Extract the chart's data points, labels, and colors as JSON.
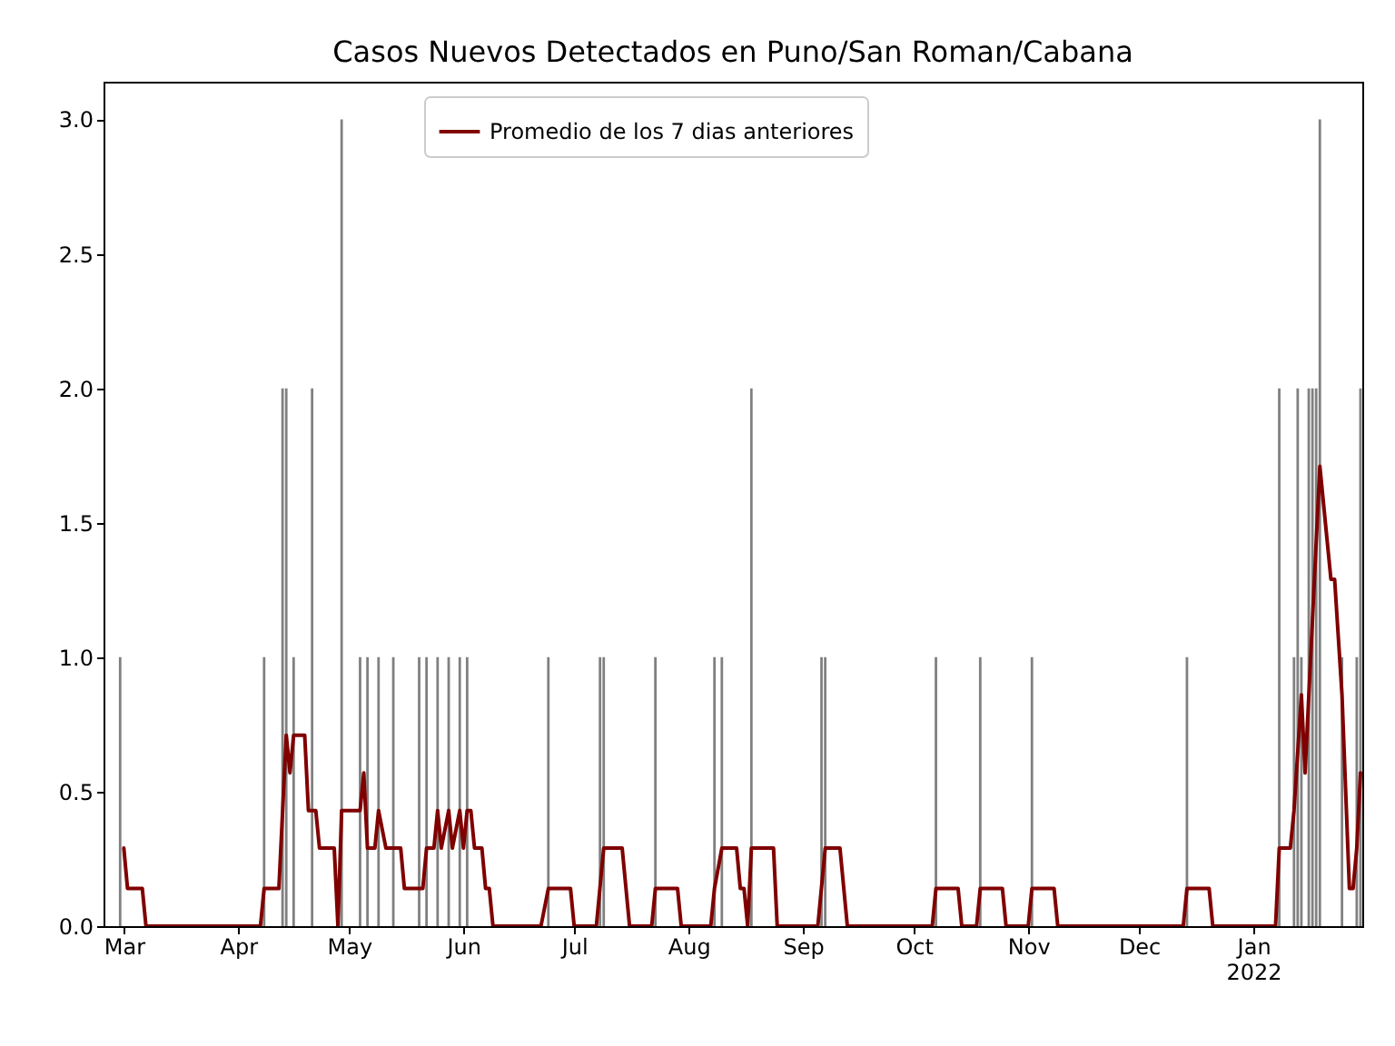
{
  "chart_data": {
    "type": "bar",
    "title": "Casos Nuevos Detectados en Puno/San Roman/Cabana",
    "xlim": [
      "2021-02-23T12:00",
      "2022-01-30T12:00"
    ],
    "xticks": [
      {
        "value": "2021-03-01",
        "label": "Mar"
      },
      {
        "value": "2021-04-01",
        "label": "Apr"
      },
      {
        "value": "2021-05-01",
        "label": "May"
      },
      {
        "value": "2021-06-01",
        "label": "Jun"
      },
      {
        "value": "2021-07-01",
        "label": "Jul"
      },
      {
        "value": "2021-08-01",
        "label": "Aug"
      },
      {
        "value": "2021-09-01",
        "label": "Sep"
      },
      {
        "value": "2021-10-01",
        "label": "Oct"
      },
      {
        "value": "2021-11-01",
        "label": "Nov"
      },
      {
        "value": "2021-12-01",
        "label": "Dec"
      },
      {
        "value": "2022-01-01",
        "label": "Jan\n2022"
      }
    ],
    "ylim": [
      0,
      3.14
    ],
    "yticks": [
      {
        "value": 0,
        "label": "0.0"
      },
      {
        "value": 0.5,
        "label": "0.5"
      },
      {
        "value": 1,
        "label": "1.0"
      },
      {
        "value": 1.5,
        "label": "1.5"
      },
      {
        "value": 2,
        "label": "2.0"
      },
      {
        "value": 2.5,
        "label": "2.5"
      },
      {
        "value": 3,
        "label": "3.0"
      }
    ],
    "grid": false,
    "legend": "top",
    "series": [
      {
        "color": "#808080",
        "x": [
          "2021-02-28",
          "2021-04-08",
          "2021-04-13",
          "2021-04-14",
          "2021-04-16",
          "2021-04-21",
          "2021-04-29",
          "2021-05-04",
          "2021-05-06",
          "2021-05-09",
          "2021-05-13",
          "2021-05-20",
          "2021-05-22",
          "2021-05-25",
          "2021-05-28",
          "2021-05-31",
          "2021-06-02",
          "2021-06-24",
          "2021-07-08",
          "2021-07-09",
          "2021-07-23",
          "2021-08-08",
          "2021-08-10",
          "2021-08-18",
          "2021-09-06",
          "2021-09-07",
          "2021-10-07",
          "2021-10-19",
          "2021-11-02",
          "2021-12-14",
          "2022-01-08",
          "2022-01-12",
          "2022-01-13",
          "2022-01-14",
          "2022-01-16",
          "2022-01-17",
          "2022-01-18",
          "2022-01-19",
          "2022-01-25",
          "2022-01-29",
          "2022-01-30"
        ],
        "values": [
          1,
          1,
          2,
          2,
          1,
          2,
          3,
          1,
          1,
          1,
          1,
          1,
          1,
          1,
          1,
          1,
          1,
          1,
          1,
          1,
          1,
          1,
          1,
          2,
          1,
          1,
          1,
          1,
          1,
          1,
          2,
          1,
          2,
          1,
          2,
          2,
          2,
          3,
          1,
          1,
          2
        ]
      },
      {
        "name": "Promedio de los 7 dias anteriores",
        "type": "line",
        "color": "#800000",
        "x": [
          "2021-03-01",
          "2021-03-02",
          "2021-03-06",
          "2021-03-07",
          "2021-04-07",
          "2021-04-08",
          "2021-04-12",
          "2021-04-14",
          "2021-04-15",
          "2021-04-16",
          "2021-04-19",
          "2021-04-20",
          "2021-04-22",
          "2021-04-23",
          "2021-04-27",
          "2021-04-28",
          "2021-04-29",
          "2021-05-04",
          "2021-05-05",
          "2021-05-06",
          "2021-05-08",
          "2021-05-09",
          "2021-05-11",
          "2021-05-15",
          "2021-05-16",
          "2021-05-21",
          "2021-05-22",
          "2021-05-24",
          "2021-05-25",
          "2021-05-26",
          "2021-05-28",
          "2021-05-29",
          "2021-05-31",
          "2021-06-01",
          "2021-06-02",
          "2021-06-03",
          "2021-06-04",
          "2021-06-06",
          "2021-06-07",
          "2021-06-08",
          "2021-06-09",
          "2021-06-22",
          "2021-06-24",
          "2021-06-30",
          "2021-07-01",
          "2021-07-07",
          "2021-07-09",
          "2021-07-14",
          "2021-07-16",
          "2021-07-22",
          "2021-07-23",
          "2021-07-29",
          "2021-07-30",
          "2021-08-07",
          "2021-08-08",
          "2021-08-10",
          "2021-08-14",
          "2021-08-15",
          "2021-08-16",
          "2021-08-17",
          "2021-08-18",
          "2021-08-24",
          "2021-08-25",
          "2021-09-05",
          "2021-09-07",
          "2021-09-11",
          "2021-09-13",
          "2021-10-06",
          "2021-10-07",
          "2021-10-13",
          "2021-10-14",
          "2021-10-18",
          "2021-10-19",
          "2021-10-25",
          "2021-10-26",
          "2021-11-01",
          "2021-11-02",
          "2021-11-08",
          "2021-11-09",
          "2021-12-13",
          "2021-12-14",
          "2021-12-20",
          "2021-12-21",
          "2022-01-07",
          "2022-01-08",
          "2022-01-11",
          "2022-01-12",
          "2022-01-14",
          "2022-01-15",
          "2022-01-19",
          "2022-01-21",
          "2022-01-22",
          "2022-01-23",
          "2022-01-25",
          "2022-01-27",
          "2022-01-28",
          "2022-01-29",
          "2022-01-30"
        ],
        "values": [
          0.29,
          0.14,
          0.14,
          0,
          0,
          0.14,
          0.14,
          0.71,
          0.57,
          0.71,
          0.71,
          0.43,
          0.43,
          0.29,
          0.29,
          0,
          0.43,
          0.43,
          0.57,
          0.29,
          0.29,
          0.43,
          0.29,
          0.29,
          0.14,
          0.14,
          0.29,
          0.29,
          0.43,
          0.29,
          0.43,
          0.29,
          0.43,
          0.29,
          0.43,
          0.43,
          0.29,
          0.29,
          0.14,
          0.14,
          0,
          0,
          0.14,
          0.14,
          0,
          0,
          0.29,
          0.29,
          0,
          0,
          0.14,
          0.14,
          0,
          0,
          0.14,
          0.29,
          0.29,
          0.14,
          0.14,
          0,
          0.29,
          0.29,
          0,
          0,
          0.29,
          0.29,
          0,
          0,
          0.14,
          0.14,
          0,
          0,
          0.14,
          0.14,
          0,
          0,
          0.14,
          0.14,
          0,
          0,
          0.14,
          0.14,
          0,
          0,
          0.29,
          0.29,
          0.43,
          0.86,
          0.57,
          1.71,
          1.43,
          1.29,
          1.29,
          0.86,
          0.14,
          0.14,
          0.29,
          0.57
        ]
      }
    ]
  }
}
